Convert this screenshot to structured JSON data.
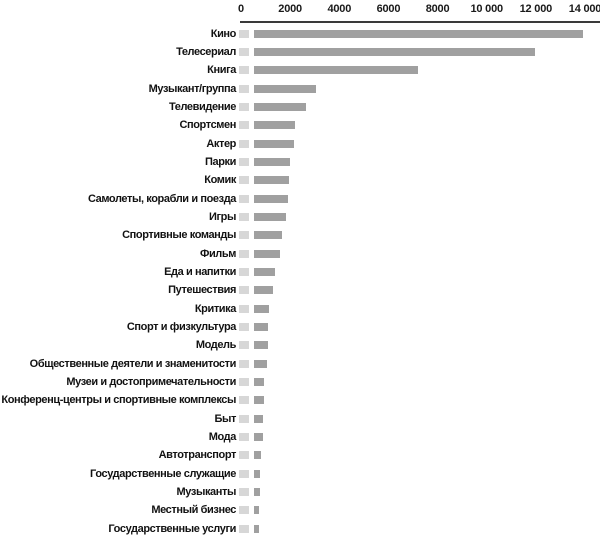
{
  "chart_data": {
    "type": "bar",
    "orientation": "horizontal",
    "title": "",
    "xlabel": "",
    "ylabel": "",
    "grid": false,
    "legend": false,
    "x_axis": {
      "position": "top",
      "tick_values": [
        0,
        2000,
        4000,
        6000,
        8000,
        10000,
        12000,
        14000
      ],
      "tick_labels": [
        "0",
        "2000",
        "4000",
        "6000",
        "8000",
        "10 000",
        "12 000",
        "14 000"
      ],
      "range": [
        0,
        14600
      ]
    },
    "categories": [
      "Кино",
      "Телесериал",
      "Книга",
      "Музыкант/группа",
      "Телевидение",
      "Спортсмен",
      "Актер",
      "Парки",
      "Комик",
      "Самолеты, корабли и поезда",
      "Игры",
      "Спортивные команды",
      "Фильм",
      "Еда и напитки",
      "Путешествия",
      "Критика",
      "Спорт и физкультура",
      "Модель",
      "Общественные деятели и знаменитости",
      "Музеи и достопримечательности",
      "Конференц-центры и спортивные комплексы",
      "Быт",
      "Мода",
      "Автотранспорт",
      "Государственные служащие",
      "Музыканты",
      "Местный бизнес",
      "Государственные услуги"
    ],
    "values": [
      13900,
      11950,
      7200,
      3050,
      2650,
      2200,
      2150,
      2000,
      1950,
      1900,
      1850,
      1650,
      1600,
      1400,
      1300,
      1150,
      1100,
      1080,
      1050,
      950,
      920,
      900,
      880,
      800,
      780,
      760,
      750,
      740
    ],
    "colors": {
      "bar": "#a0a0a0",
      "start_marker": "#d7d7d7",
      "axis_line": "#3a3a3a",
      "text": "#121212"
    }
  }
}
